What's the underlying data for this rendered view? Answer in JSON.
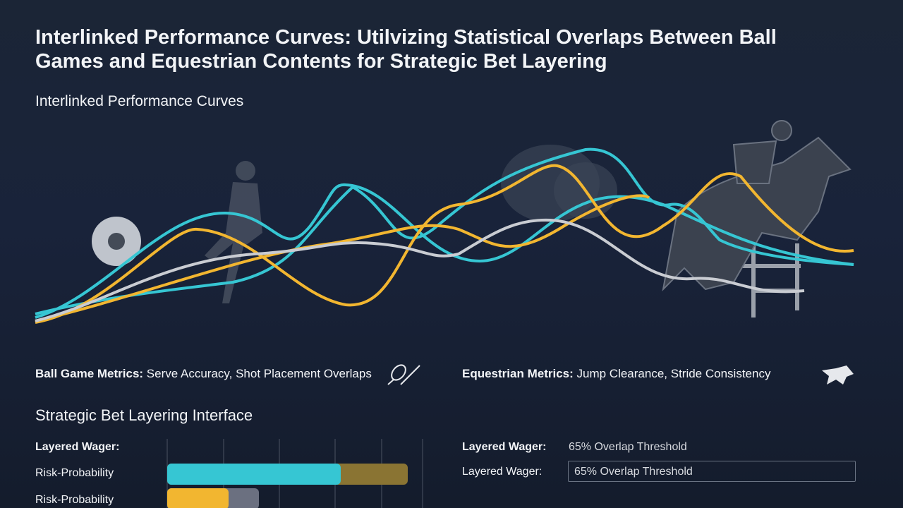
{
  "header": {
    "title": "Interlinked Performance Curves: Utilvizing Statistical Overlaps Between Ball Games and Equestrian Contents for Strategic Bet Layering",
    "subtitle": "Interlinked Performance Curves"
  },
  "metrics": [
    {
      "label": "Ball Game Metrics:",
      "text": "Serve Accuracy, Shot Placement Overlaps"
    },
    {
      "label": "Equestrian Metrics:",
      "text": "Jump Clearance, Stride Consistency"
    }
  ],
  "interface": {
    "title": "Strategic Bet Layering Interface",
    "left_rows": [
      "Layered Wager:",
      "Risk-Probability",
      "Risk-Probability"
    ],
    "right_rows": [
      {
        "label": "Layered Wager:",
        "value": "65% Overlap Threshold"
      },
      {
        "label": "Layered Wager:",
        "value": "65% Overlap Threshold"
      }
    ]
  }
}
